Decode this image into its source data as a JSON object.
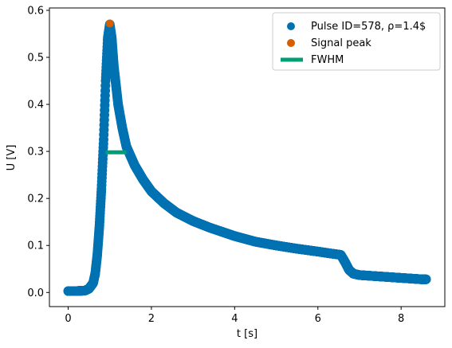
{
  "chart_data": {
    "type": "scatter",
    "title": "",
    "xlabel": "t [s]",
    "ylabel": "U [V]",
    "xlim": [
      -0.45,
      9.05
    ],
    "ylim": [
      -0.03,
      0.605
    ],
    "x_ticks": [
      0,
      2,
      4,
      6,
      8
    ],
    "y_ticks": [
      0.0,
      0.1,
      0.2,
      0.3,
      0.4,
      0.5,
      0.6
    ],
    "grid": false,
    "legend_position": "top-right",
    "series": [
      {
        "name": "Pulse ID=578, ρ=1.4$",
        "kind": "scatter",
        "color": "#0072b2",
        "x": [
          0.0,
          0.2,
          0.4,
          0.5,
          0.6,
          0.65,
          0.7,
          0.75,
          0.8,
          0.85,
          0.9,
          0.95,
          1.0,
          1.05,
          1.1,
          1.15,
          1.2,
          1.3,
          1.4,
          1.6,
          1.8,
          2.0,
          2.3,
          2.6,
          3.0,
          3.4,
          4.0,
          4.5,
          5.0,
          5.5,
          6.0,
          6.3,
          6.55,
          6.65,
          6.75,
          6.85,
          7.0,
          7.5,
          8.0,
          8.5,
          8.6
        ],
        "y": [
          0.003,
          0.003,
          0.004,
          0.008,
          0.02,
          0.04,
          0.08,
          0.14,
          0.22,
          0.32,
          0.45,
          0.54,
          0.57,
          0.54,
          0.48,
          0.44,
          0.4,
          0.35,
          0.31,
          0.27,
          0.24,
          0.215,
          0.19,
          0.17,
          0.152,
          0.138,
          0.12,
          0.108,
          0.1,
          0.093,
          0.087,
          0.083,
          0.08,
          0.065,
          0.048,
          0.04,
          0.037,
          0.034,
          0.031,
          0.028,
          0.028
        ]
      },
      {
        "name": "Signal peak",
        "kind": "scatter",
        "color": "#d55e00",
        "x": [
          1.0
        ],
        "y": [
          0.572
        ]
      },
      {
        "name": "FWHM",
        "kind": "line",
        "color": "#009e73",
        "x": [
          0.9,
          1.4
        ],
        "y": [
          0.298,
          0.298
        ]
      }
    ]
  }
}
